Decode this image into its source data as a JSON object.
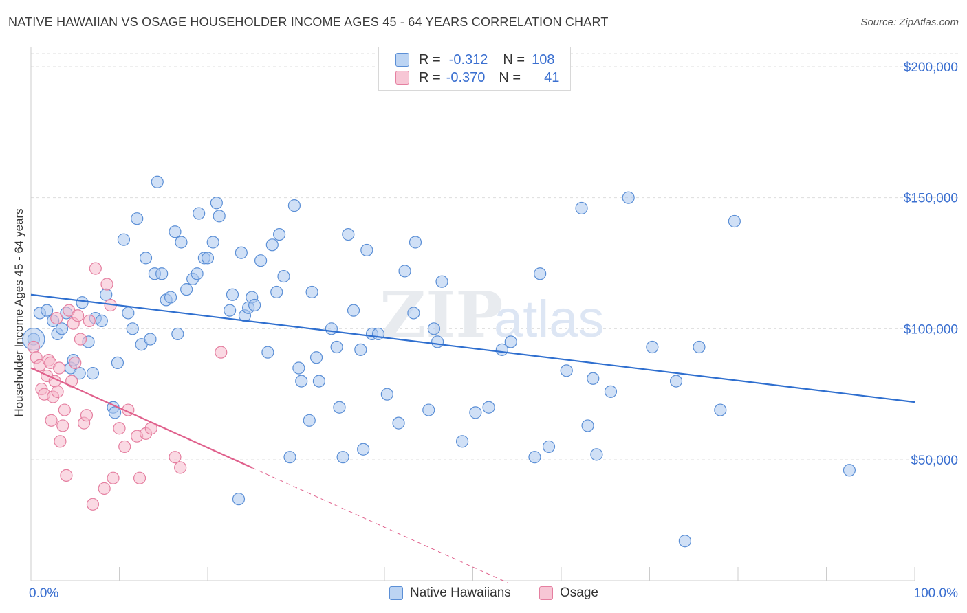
{
  "header": {
    "title": "NATIVE HAWAIIAN VS OSAGE HOUSEHOLDER INCOME AGES 45 - 64 YEARS CORRELATION CHART",
    "source": "Source: ZipAtlas.com"
  },
  "legend": {
    "rows": [
      {
        "r_label": "R =",
        "r_value": "-0.312",
        "n_label": "N =",
        "n_value": "108"
      },
      {
        "r_label": "R =",
        "r_value": "-0.370",
        "n_label": "N =",
        "n_value": "41"
      }
    ]
  },
  "watermark": {
    "zip": "ZIP",
    "atlas": "atlas"
  },
  "colors": {
    "blue_fill": "#a9c6ee",
    "blue_stroke": "#5b8fd6",
    "blue_line": "#2f6fcf",
    "pink_fill": "#f5b9cc",
    "pink_stroke": "#e57fa0",
    "pink_line": "#e0608c",
    "tick_label": "#3a6fd0",
    "grid": "#dddddd"
  },
  "chart_data": {
    "type": "scatter",
    "title": "NATIVE HAWAIIAN VS OSAGE HOUSEHOLDER INCOME AGES 45 - 64 YEARS CORRELATION CHART",
    "xlabel": "",
    "ylabel": "Householder Income Ages 45 - 64 years",
    "xlim": [
      0,
      100
    ],
    "ylim": [
      0,
      215000
    ],
    "x_tick_labels": [
      "0.0%",
      "100.0%"
    ],
    "y_ticks": [
      50000,
      100000,
      150000,
      200000
    ],
    "y_tick_labels": [
      "$50,000",
      "$100,000",
      "$150,000",
      "$200,000"
    ],
    "grid": true,
    "legend_position": "bottom",
    "series": [
      {
        "name": "Native Hawaiians",
        "trend": {
          "x": [
            0,
            100
          ],
          "y": [
            113000,
            72000
          ]
        },
        "points": [
          [
            0.3,
            96000
          ],
          [
            1,
            106000
          ],
          [
            1.8,
            107000
          ],
          [
            2.5,
            103000
          ],
          [
            3,
            98000
          ],
          [
            3.5,
            100000
          ],
          [
            4,
            106000
          ],
          [
            4.5,
            85000
          ],
          [
            4.8,
            88000
          ],
          [
            5.5,
            83000
          ],
          [
            5.8,
            110000
          ],
          [
            6.5,
            95000
          ],
          [
            7,
            83000
          ],
          [
            7.3,
            104000
          ],
          [
            8,
            103000
          ],
          [
            8.5,
            113000
          ],
          [
            9.3,
            70000
          ],
          [
            9.5,
            68000
          ],
          [
            9.8,
            87000
          ],
          [
            10.5,
            134000
          ],
          [
            11,
            106000
          ],
          [
            11.5,
            100000
          ],
          [
            12,
            142000
          ],
          [
            12.5,
            94000
          ],
          [
            13,
            127000
          ],
          [
            13.5,
            96000
          ],
          [
            14,
            121000
          ],
          [
            14.3,
            156000
          ],
          [
            14.8,
            121000
          ],
          [
            15.3,
            111000
          ],
          [
            15.8,
            112000
          ],
          [
            16.3,
            137000
          ],
          [
            16.6,
            98000
          ],
          [
            17,
            133000
          ],
          [
            17.6,
            115000
          ],
          [
            18.3,
            119000
          ],
          [
            18.8,
            121000
          ],
          [
            19,
            144000
          ],
          [
            19.6,
            127000
          ],
          [
            20,
            127000
          ],
          [
            20.6,
            133000
          ],
          [
            21,
            148000
          ],
          [
            21.3,
            143000
          ],
          [
            22.5,
            107000
          ],
          [
            22.8,
            113000
          ],
          [
            23.5,
            35000
          ],
          [
            23.8,
            129000
          ],
          [
            24.2,
            105000
          ],
          [
            24.6,
            108000
          ],
          [
            25,
            112000
          ],
          [
            25.3,
            109000
          ],
          [
            26,
            126000
          ],
          [
            26.8,
            91000
          ],
          [
            27.3,
            132000
          ],
          [
            27.8,
            114000
          ],
          [
            28.1,
            136000
          ],
          [
            28.6,
            120000
          ],
          [
            29.3,
            51000
          ],
          [
            29.8,
            147000
          ],
          [
            30.3,
            85000
          ],
          [
            30.6,
            80000
          ],
          [
            31.5,
            65000
          ],
          [
            31.8,
            114000
          ],
          [
            32.3,
            89000
          ],
          [
            32.6,
            80000
          ],
          [
            34,
            100000
          ],
          [
            34.6,
            93000
          ],
          [
            34.9,
            70000
          ],
          [
            35.3,
            51000
          ],
          [
            35.9,
            136000
          ],
          [
            36.5,
            107000
          ],
          [
            37.3,
            92000
          ],
          [
            37.6,
            54000
          ],
          [
            38,
            130000
          ],
          [
            38.6,
            98000
          ],
          [
            39.3,
            98000
          ],
          [
            40.3,
            75000
          ],
          [
            41.6,
            64000
          ],
          [
            42.3,
            122000
          ],
          [
            43.3,
            106000
          ],
          [
            43.5,
            133000
          ],
          [
            45,
            69000
          ],
          [
            45.6,
            100000
          ],
          [
            46,
            95000
          ],
          [
            46.5,
            118000
          ],
          [
            48.8,
            57000
          ],
          [
            50.3,
            68000
          ],
          [
            51.8,
            70000
          ],
          [
            53.3,
            92000
          ],
          [
            54.3,
            95000
          ],
          [
            57,
            51000
          ],
          [
            57.6,
            121000
          ],
          [
            58.6,
            55000
          ],
          [
            60.6,
            84000
          ],
          [
            62.3,
            146000
          ],
          [
            63,
            63000
          ],
          [
            63.6,
            81000
          ],
          [
            64,
            52000
          ],
          [
            65.6,
            76000
          ],
          [
            67.6,
            150000
          ],
          [
            70.3,
            93000
          ],
          [
            73,
            80000
          ],
          [
            74,
            19000
          ],
          [
            75.6,
            93000
          ],
          [
            78,
            69000
          ],
          [
            79.6,
            141000
          ],
          [
            92.6,
            46000
          ]
        ]
      },
      {
        "name": "Osage",
        "trend": {
          "x": [
            0,
            25
          ],
          "y": [
            85000,
            47000
          ]
        },
        "trend_extension": {
          "x": [
            25,
            54
          ],
          "y": [
            47000,
            3000
          ]
        },
        "points": [
          [
            0.3,
            93000
          ],
          [
            0.6,
            89000
          ],
          [
            1,
            86000
          ],
          [
            1.2,
            77000
          ],
          [
            1.5,
            75000
          ],
          [
            1.8,
            82000
          ],
          [
            2,
            88000
          ],
          [
            2.2,
            87000
          ],
          [
            2.3,
            65000
          ],
          [
            2.5,
            74000
          ],
          [
            2.7,
            80000
          ],
          [
            2.9,
            104000
          ],
          [
            3,
            76000
          ],
          [
            3.2,
            85000
          ],
          [
            3.3,
            57000
          ],
          [
            3.6,
            63000
          ],
          [
            3.8,
            69000
          ],
          [
            4,
            44000
          ],
          [
            4.3,
            107000
          ],
          [
            4.6,
            80000
          ],
          [
            4.8,
            102000
          ],
          [
            5,
            87000
          ],
          [
            5.3,
            105000
          ],
          [
            5.6,
            96000
          ],
          [
            6,
            64000
          ],
          [
            6.3,
            67000
          ],
          [
            6.6,
            103000
          ],
          [
            7,
            33000
          ],
          [
            7.3,
            123000
          ],
          [
            8.3,
            39000
          ],
          [
            8.6,
            117000
          ],
          [
            9,
            109000
          ],
          [
            9.3,
            43000
          ],
          [
            10,
            62000
          ],
          [
            10.6,
            55000
          ],
          [
            11,
            69000
          ],
          [
            12,
            59000
          ],
          [
            12.3,
            43000
          ],
          [
            13,
            60000
          ],
          [
            13.6,
            62000
          ],
          [
            16.3,
            51000
          ],
          [
            16.9,
            47000
          ],
          [
            21.5,
            91000
          ]
        ]
      }
    ]
  }
}
